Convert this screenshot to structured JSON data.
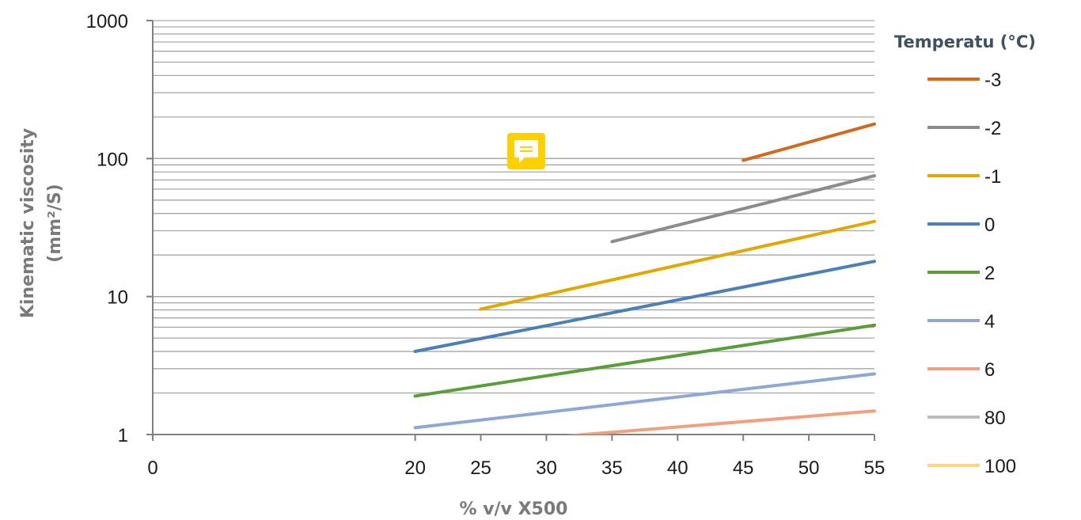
{
  "chart_data": {
    "type": "line",
    "xlabel": "% v/v X500",
    "ylabel_line1": "Kinematic viscosity",
    "ylabel_line2": "(mm²/S)",
    "xlim": [
      0,
      55
    ],
    "ylim": [
      1,
      1000
    ],
    "y_scale": "log",
    "x_ticks": [
      "0",
      "20",
      "25",
      "30",
      "35",
      "40",
      "45",
      "50",
      "55"
    ],
    "y_ticks": [
      "1",
      "10",
      "100",
      "1000"
    ],
    "grid": "horizontal minor and major",
    "legend": {
      "title": "Temperatu  (°C)",
      "placement": "right",
      "entries": [
        {
          "label": "-3",
          "color": "#d2691e"
        },
        {
          "label": "-2",
          "color": "#8c8c8c"
        },
        {
          "label": "-1",
          "color": "#e0a800"
        },
        {
          "label": "0",
          "color": "#4a7fb8"
        },
        {
          "label": "2",
          "color": "#5a9e3a"
        },
        {
          "label": "4",
          "color": "#8fa6d8"
        },
        {
          "label": "6",
          "color": "#f0a080"
        },
        {
          "label": "80",
          "color": "#bdbdbd"
        },
        {
          "label": "100",
          "color": "#ffd580"
        }
      ]
    },
    "series": [
      {
        "name": "-3",
        "color": "#d2691e",
        "points": [
          [
            45,
            97
          ],
          [
            55,
            178
          ]
        ]
      },
      {
        "name": "-2",
        "color": "#8c8c8c",
        "points": [
          [
            35,
            25
          ],
          [
            55,
            75
          ]
        ]
      },
      {
        "name": "-1",
        "color": "#e0a800",
        "points": [
          [
            25,
            8.1
          ],
          [
            55,
            35
          ]
        ]
      },
      {
        "name": "0",
        "color": "#4a7fb8",
        "points": [
          [
            20,
            4.0
          ],
          [
            55,
            18
          ]
        ]
      },
      {
        "name": "2",
        "color": "#5a9e3a",
        "points": [
          [
            20,
            1.9
          ],
          [
            55,
            6.2
          ]
        ]
      },
      {
        "name": "4",
        "color": "#8fa6d8",
        "points": [
          [
            20,
            1.12
          ],
          [
            55,
            2.75
          ]
        ]
      },
      {
        "name": "6",
        "color": "#f0a080",
        "points": [
          [
            30,
            0.95
          ],
          [
            55,
            1.48
          ]
        ]
      }
    ]
  },
  "annotation": {
    "icon": "comment-icon",
    "color": "#ffd000"
  }
}
